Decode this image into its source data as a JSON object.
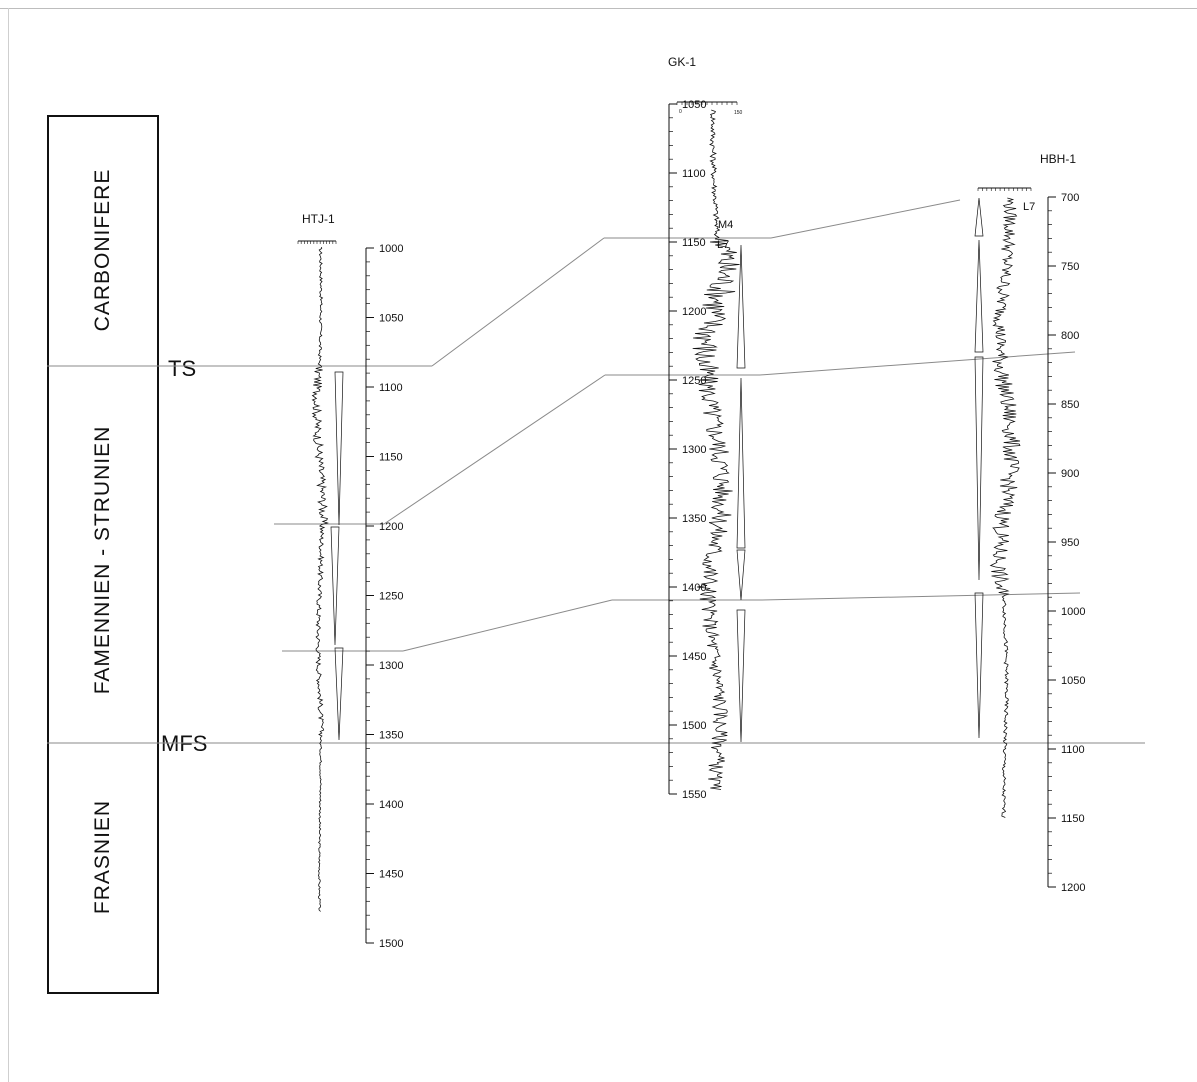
{
  "stratigraphy": {
    "units": [
      {
        "id": "carbonifere",
        "label": "CARBONIFERE"
      },
      {
        "id": "famennien",
        "label": "FAMENNIEN - STRUNIEN"
      },
      {
        "id": "frasnien",
        "label": "FRASNIEN"
      }
    ],
    "surfaces": [
      {
        "id": "ts",
        "label": "TS"
      },
      {
        "id": "mfs",
        "label": "MFS"
      }
    ]
  },
  "wells": [
    {
      "id": "htj",
      "name": "HTJ-1",
      "depth_ticks": [
        1000,
        1050,
        1100,
        1150,
        1200,
        1250,
        1300,
        1350,
        1400,
        1450,
        1500
      ]
    },
    {
      "id": "gk",
      "name": "GK-1",
      "depth_ticks": [
        1050,
        1100,
        1150,
        1200,
        1250,
        1300,
        1350,
        1400,
        1450,
        1500,
        1550
      ],
      "header_scale": [
        "0",
        "150"
      ],
      "markers": [
        "M4",
        "L7"
      ]
    },
    {
      "id": "hbh",
      "name": "HBH-1",
      "depth_ticks": [
        700,
        750,
        800,
        850,
        900,
        950,
        1000,
        1050,
        1100,
        1150,
        1200
      ],
      "markers": [
        "L7"
      ]
    }
  ],
  "colors": {
    "line": "#111111",
    "correlation": "#8a8a8a",
    "frame": "#bdbdbd"
  }
}
